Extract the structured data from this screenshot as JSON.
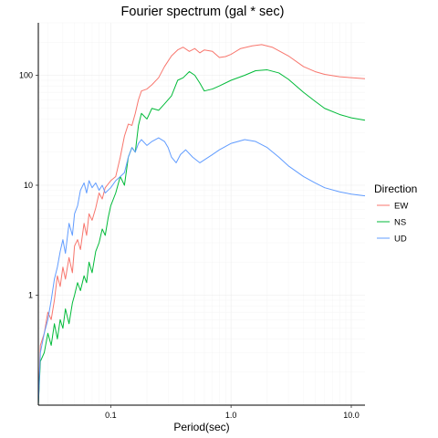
{
  "chart_data": {
    "type": "line",
    "title": "Fourier spectrum (gal * sec)",
    "xlabel": "Period(sec)",
    "ylabel": "",
    "x_scale": "log",
    "y_scale": "log",
    "xlim": [
      0.025,
      13
    ],
    "ylim": [
      0.1,
      300
    ],
    "x_ticks": [
      0.1,
      1.0,
      10.0
    ],
    "x_tick_labels": [
      "0.1",
      "1.0",
      "10.0"
    ],
    "y_ticks": [
      1,
      10,
      100
    ],
    "y_tick_labels": [
      "1",
      "10",
      "100"
    ],
    "grid": true,
    "legend": {
      "title": "Direction",
      "position": "right"
    },
    "series": [
      {
        "name": "EW",
        "color": "#F8766D",
        "points": [
          [
            0.025,
            0.1
          ],
          [
            0.026,
            0.35
          ],
          [
            0.028,
            0.45
          ],
          [
            0.03,
            0.7
          ],
          [
            0.032,
            0.6
          ],
          [
            0.034,
            0.9
          ],
          [
            0.036,
            1.5
          ],
          [
            0.038,
            1.2
          ],
          [
            0.04,
            1.8
          ],
          [
            0.042,
            1.4
          ],
          [
            0.045,
            2.2
          ],
          [
            0.048,
            1.6
          ],
          [
            0.05,
            2.8
          ],
          [
            0.053,
            3.2
          ],
          [
            0.056,
            2.6
          ],
          [
            0.06,
            4.5
          ],
          [
            0.063,
            3.5
          ],
          [
            0.066,
            5.5
          ],
          [
            0.07,
            4.8
          ],
          [
            0.075,
            6.2
          ],
          [
            0.08,
            8.5
          ],
          [
            0.085,
            7.5
          ],
          [
            0.09,
            9.5
          ],
          [
            0.1,
            11
          ],
          [
            0.11,
            12
          ],
          [
            0.12,
            18
          ],
          [
            0.13,
            28
          ],
          [
            0.14,
            36
          ],
          [
            0.15,
            35
          ],
          [
            0.16,
            45
          ],
          [
            0.17,
            60
          ],
          [
            0.18,
            72
          ],
          [
            0.2,
            75
          ],
          [
            0.22,
            82
          ],
          [
            0.25,
            95
          ],
          [
            0.28,
            120
          ],
          [
            0.32,
            150
          ],
          [
            0.36,
            170
          ],
          [
            0.4,
            180
          ],
          [
            0.45,
            165
          ],
          [
            0.5,
            175
          ],
          [
            0.55,
            160
          ],
          [
            0.6,
            170
          ],
          [
            0.7,
            165
          ],
          [
            0.8,
            145
          ],
          [
            0.9,
            148
          ],
          [
            1.0,
            155
          ],
          [
            1.2,
            175
          ],
          [
            1.5,
            185
          ],
          [
            1.8,
            190
          ],
          [
            2.2,
            180
          ],
          [
            3.0,
            150
          ],
          [
            4.0,
            120
          ],
          [
            5.0,
            108
          ],
          [
            6.0,
            102
          ],
          [
            8.0,
            97
          ],
          [
            10.0,
            95
          ],
          [
            13.0,
            93
          ]
        ]
      },
      {
        "name": "NS",
        "color": "#00BA38",
        "points": [
          [
            0.025,
            0.1
          ],
          [
            0.026,
            0.25
          ],
          [
            0.028,
            0.3
          ],
          [
            0.03,
            0.45
          ],
          [
            0.032,
            0.35
          ],
          [
            0.034,
            0.55
          ],
          [
            0.036,
            0.4
          ],
          [
            0.038,
            0.6
          ],
          [
            0.04,
            0.5
          ],
          [
            0.042,
            0.75
          ],
          [
            0.045,
            0.55
          ],
          [
            0.048,
            0.85
          ],
          [
            0.05,
            1.0
          ],
          [
            0.053,
            1.3
          ],
          [
            0.056,
            1.1
          ],
          [
            0.06,
            1.5
          ],
          [
            0.063,
            1.3
          ],
          [
            0.066,
            2.0
          ],
          [
            0.07,
            1.6
          ],
          [
            0.075,
            2.5
          ],
          [
            0.08,
            3.0
          ],
          [
            0.085,
            4.0
          ],
          [
            0.09,
            3.5
          ],
          [
            0.095,
            5.0
          ],
          [
            0.1,
            6.5
          ],
          [
            0.11,
            8.5
          ],
          [
            0.12,
            12
          ],
          [
            0.13,
            10
          ],
          [
            0.14,
            18
          ],
          [
            0.15,
            22
          ],
          [
            0.16,
            20
          ],
          [
            0.17,
            35
          ],
          [
            0.18,
            45
          ],
          [
            0.2,
            40
          ],
          [
            0.22,
            50
          ],
          [
            0.25,
            48
          ],
          [
            0.28,
            55
          ],
          [
            0.32,
            65
          ],
          [
            0.36,
            90
          ],
          [
            0.4,
            95
          ],
          [
            0.45,
            108
          ],
          [
            0.5,
            100
          ],
          [
            0.55,
            85
          ],
          [
            0.6,
            72
          ],
          [
            0.7,
            75
          ],
          [
            0.8,
            80
          ],
          [
            1.0,
            90
          ],
          [
            1.3,
            100
          ],
          [
            1.6,
            110
          ],
          [
            2.0,
            112
          ],
          [
            2.5,
            105
          ],
          [
            3.0,
            92
          ],
          [
            4.0,
            70
          ],
          [
            5.0,
            58
          ],
          [
            6.0,
            50
          ],
          [
            8.0,
            44
          ],
          [
            10.0,
            41
          ],
          [
            13.0,
            39
          ]
        ]
      },
      {
        "name": "UD",
        "color": "#619CFF",
        "points": [
          [
            0.025,
            0.1
          ],
          [
            0.026,
            0.3
          ],
          [
            0.028,
            0.45
          ],
          [
            0.03,
            0.6
          ],
          [
            0.032,
            0.9
          ],
          [
            0.034,
            1.4
          ],
          [
            0.036,
            1.8
          ],
          [
            0.038,
            2.5
          ],
          [
            0.04,
            3.2
          ],
          [
            0.042,
            2.4
          ],
          [
            0.045,
            4.5
          ],
          [
            0.048,
            3.5
          ],
          [
            0.05,
            5.5
          ],
          [
            0.053,
            6.5
          ],
          [
            0.056,
            9.0
          ],
          [
            0.06,
            10.5
          ],
          [
            0.063,
            8.5
          ],
          [
            0.066,
            11
          ],
          [
            0.07,
            9.5
          ],
          [
            0.075,
            10.5
          ],
          [
            0.08,
            9.0
          ],
          [
            0.085,
            10
          ],
          [
            0.09,
            8.5
          ],
          [
            0.1,
            9.5
          ],
          [
            0.11,
            11
          ],
          [
            0.12,
            12
          ],
          [
            0.13,
            13
          ],
          [
            0.14,
            18
          ],
          [
            0.15,
            22
          ],
          [
            0.16,
            20
          ],
          [
            0.17,
            24
          ],
          [
            0.18,
            26
          ],
          [
            0.2,
            23
          ],
          [
            0.22,
            25
          ],
          [
            0.25,
            27
          ],
          [
            0.28,
            25
          ],
          [
            0.3,
            22
          ],
          [
            0.32,
            18
          ],
          [
            0.35,
            16
          ],
          [
            0.38,
            19
          ],
          [
            0.42,
            21
          ],
          [
            0.48,
            18
          ],
          [
            0.55,
            16
          ],
          [
            0.6,
            17
          ],
          [
            0.7,
            19
          ],
          [
            0.8,
            21
          ],
          [
            1.0,
            24
          ],
          [
            1.3,
            26
          ],
          [
            1.6,
            25
          ],
          [
            2.0,
            22
          ],
          [
            2.5,
            18
          ],
          [
            3.0,
            15
          ],
          [
            4.0,
            12
          ],
          [
            5.0,
            10.5
          ],
          [
            6.0,
            9.5
          ],
          [
            8.0,
            8.7
          ],
          [
            10.0,
            8.3
          ],
          [
            13.0,
            8.0
          ]
        ]
      }
    ]
  }
}
